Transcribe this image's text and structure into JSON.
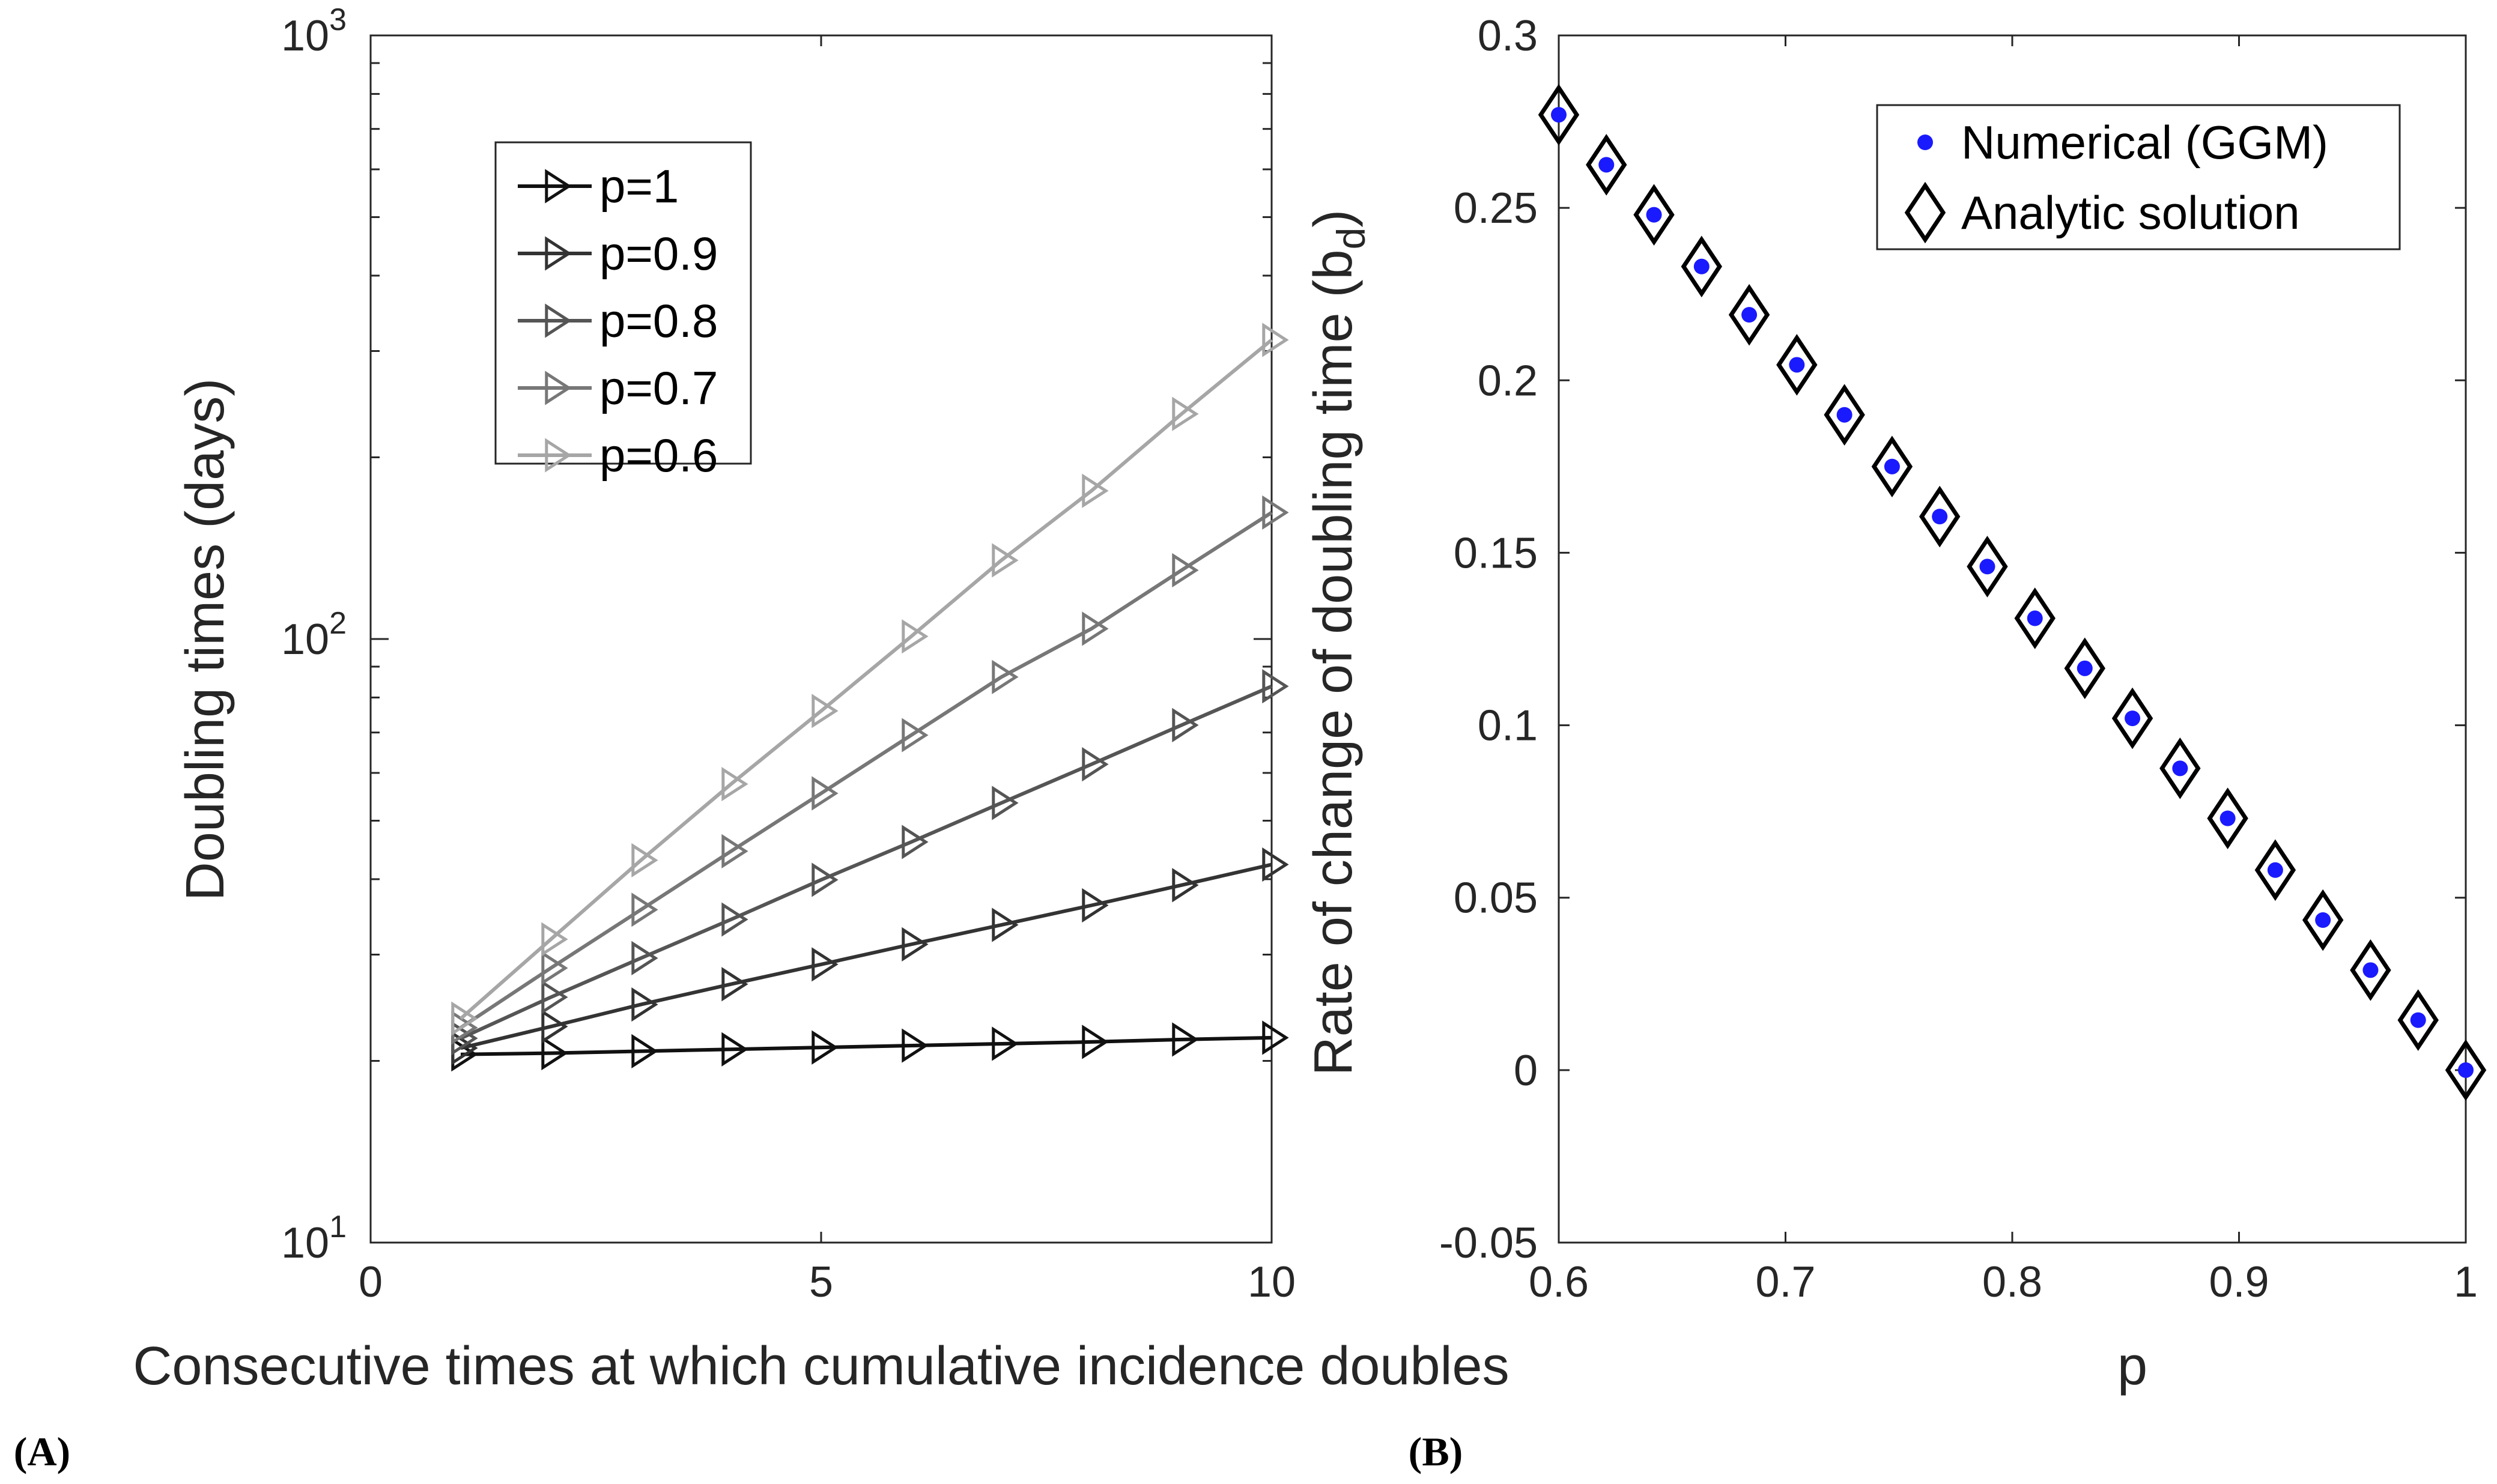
{
  "chart_data": [
    {
      "panel": "(A)",
      "type": "line",
      "xlabel": "Consecutive times at which cumulative incidence doubles",
      "ylabel": "Doubling times (days)",
      "yscale": "log",
      "xlim": [
        0,
        10
      ],
      "ylim": [
        10,
        1000
      ],
      "x_ticks": [
        "0",
        "5",
        "10"
      ],
      "y_ticks": [
        {
          "value": 10,
          "base": "10",
          "exp": "1"
        },
        {
          "value": 100,
          "base": "10",
          "exp": "2"
        },
        {
          "value": 1000,
          "base": "10",
          "exp": "3"
        }
      ],
      "legend_position": "upper-left",
      "x": [
        1,
        2,
        3,
        4,
        5,
        6,
        7,
        8,
        9,
        10
      ],
      "series": [
        {
          "name": "p=1",
          "color": "#111111",
          "values": [
            20.5,
            20.6,
            20.75,
            20.9,
            21.05,
            21.2,
            21.35,
            21.5,
            21.7,
            21.85
          ]
        },
        {
          "name": "p=0.9",
          "color": "#333333",
          "values": [
            21,
            22.8,
            24.8,
            26.8,
            28.9,
            31.2,
            33.6,
            36.2,
            39.1,
            42.3
          ]
        },
        {
          "name": "p=0.8",
          "color": "#555555",
          "values": [
            21.8,
            25.5,
            29.6,
            34.3,
            39.9,
            46.1,
            53.5,
            62,
            72,
            83.5
          ]
        },
        {
          "name": "p=0.7",
          "color": "#777777",
          "values": [
            22.7,
            28.5,
            35.6,
            44.5,
            55.5,
            69.3,
            86.5,
            104,
            130,
            162
          ]
        },
        {
          "name": "p=0.6",
          "color": "#a6a6a6",
          "values": [
            23.5,
            31.8,
            43,
            57.5,
            76,
            101,
            135,
            176,
            236,
            313
          ]
        }
      ]
    },
    {
      "panel": "(B)",
      "type": "scatter",
      "xlabel": "p",
      "ylabel": "Rate of change of doubling time (b",
      "ylabel_sub": "d",
      "ylabel_close": ")",
      "xlim": [
        0.6,
        1
      ],
      "ylim": [
        -0.05,
        0.3
      ],
      "x_ticks": [
        "0.6",
        "0.7",
        "0.8",
        "0.9",
        "1"
      ],
      "y_ticks": [
        "-0.05",
        "0",
        "0.05",
        "0.1",
        "0.15",
        "0.2",
        "0.25",
        "0.3"
      ],
      "legend_position": "upper-right",
      "x": [
        0.6,
        0.621,
        0.642,
        0.663,
        0.684,
        0.705,
        0.726,
        0.747,
        0.768,
        0.789,
        0.81,
        0.832,
        0.853,
        0.874,
        0.895,
        0.916,
        0.937,
        0.958,
        0.979,
        1.0
      ],
      "series": [
        {
          "name": "Numerical (GGM)",
          "marker": "dot",
          "color": "#1a1aff",
          "values": [
            0.277,
            0.2625,
            0.248,
            0.233,
            0.219,
            0.2045,
            0.19,
            0.175,
            0.1605,
            0.146,
            0.131,
            0.1165,
            0.102,
            0.0875,
            0.073,
            0.058,
            0.0435,
            0.029,
            0.0145,
            0.0
          ]
        },
        {
          "name": "Analytic solution",
          "marker": "diamond",
          "color": "#000000",
          "values": [
            0.277,
            0.2625,
            0.248,
            0.233,
            0.219,
            0.2045,
            0.19,
            0.175,
            0.1605,
            0.146,
            0.131,
            0.1165,
            0.102,
            0.0875,
            0.073,
            0.058,
            0.0435,
            0.029,
            0.0145,
            0.0
          ]
        }
      ]
    }
  ]
}
